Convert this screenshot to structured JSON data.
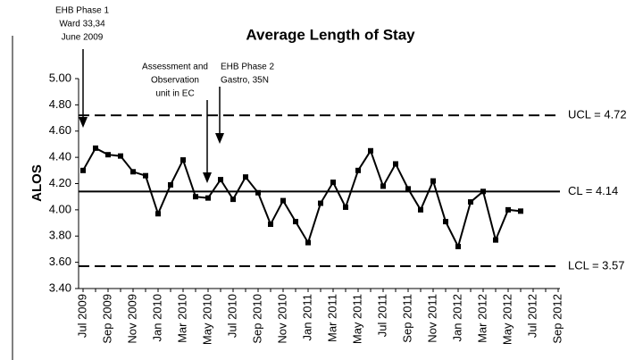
{
  "chart_data": {
    "type": "line",
    "title": "Average Length of Stay",
    "y_label": "ALOS",
    "categories": [
      "Jul 2009",
      null,
      "Sep 2009",
      null,
      "Nov 2009",
      null,
      "Jan 2010",
      null,
      "Mar 2010",
      null,
      "May 2010",
      null,
      "Jul 2010",
      null,
      "Sep 2010",
      null,
      "Nov 2010",
      null,
      "Jan 2011",
      null,
      "Mar 2011",
      null,
      "May 2011",
      null,
      "Jul 2011",
      null,
      "Sep 2011",
      null,
      "Nov 2011",
      null,
      "Jan 2012",
      null,
      "Mar 2012",
      null,
      "May 2012",
      null,
      "Jul 2012",
      null,
      "Sep 2012"
    ],
    "series": [
      {
        "name": "ALOS",
        "color": "#000000",
        "values": [
          4.3,
          4.47,
          4.42,
          4.41,
          4.29,
          4.26,
          3.97,
          4.19,
          4.38,
          4.1,
          4.09,
          4.23,
          4.08,
          4.25,
          4.13,
          3.89,
          4.07,
          3.91,
          3.75,
          4.05,
          4.21,
          4.02,
          4.3,
          4.45,
          4.18,
          4.35,
          4.16,
          4.0,
          4.22,
          3.91,
          3.72,
          4.06,
          4.14,
          3.77,
          4.0,
          3.99,
          null,
          null,
          null
        ]
      }
    ],
    "control_limits": [
      {
        "value": 4.72,
        "label": "UCL = 4.72",
        "style": "dashed"
      },
      {
        "value": 4.14,
        "label": "CL = 4.14",
        "style": "solid"
      },
      {
        "value": 3.57,
        "label": "LCL = 3.57",
        "style": "dashed"
      }
    ],
    "ylim": [
      3.4,
      5.0
    ],
    "yticks": [
      {
        "value": 3.4,
        "label": "3.40"
      },
      {
        "value": 3.6,
        "label": "3.60"
      },
      {
        "value": 3.8,
        "label": "3.80"
      },
      {
        "value": 4.0,
        "label": "4.00"
      },
      {
        "value": 4.2,
        "label": "4.20"
      },
      {
        "value": 4.4,
        "label": "4.40"
      },
      {
        "value": 4.6,
        "label": "4.60"
      },
      {
        "value": 4.8,
        "label": "4.80"
      },
      {
        "value": 5.0,
        "label": "5.00"
      }
    ],
    "annotations": [
      {
        "lines": [
          "EHB Phase 1",
          "Ward 33,34",
          "June 2009"
        ]
      },
      {
        "lines": [
          "Assessment and",
          "Observation",
          "unit in EC"
        ]
      },
      {
        "lines": [
          "EHB Phase 2",
          "Gastro, 35N"
        ]
      }
    ]
  }
}
